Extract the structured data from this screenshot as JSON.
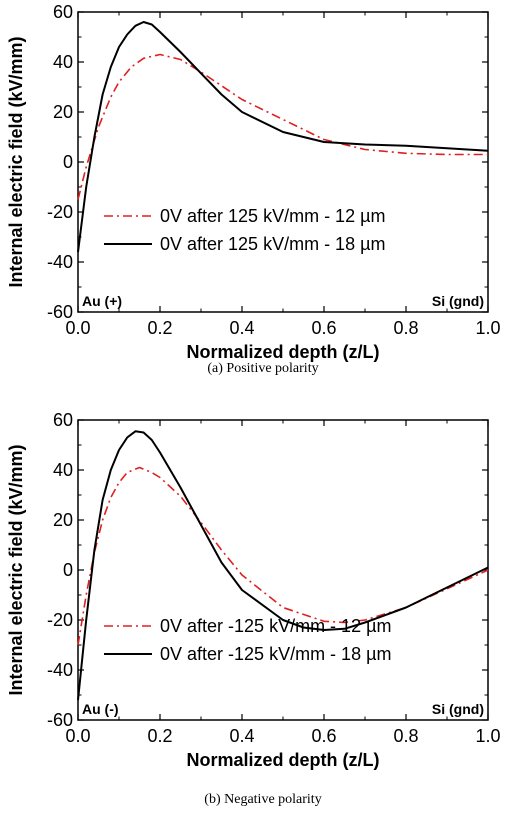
{
  "chart_data": [
    {
      "type": "line",
      "caption": "(a) Positive polarity",
      "xlabel": "Normalized depth (z/L)",
      "ylabel": "Internal electric field (kV/mm)",
      "xlim": [
        0,
        1
      ],
      "ylim": [
        -60,
        60
      ],
      "xticks": [
        "0.0",
        "0.2",
        "0.4",
        "0.6",
        "0.8",
        "1.0"
      ],
      "yticks": [
        "60",
        "40",
        "20",
        "0",
        "-20",
        "-40",
        "-60"
      ],
      "corner_left": "Au (+)",
      "corner_right": "Si (gnd)",
      "legend_position": "lower-center",
      "series": [
        {
          "name": "0V after 125 kV/mm -  12 µm",
          "color": "#e02020",
          "style": "dashdot",
          "x": [
            0,
            0.02,
            0.05,
            0.08,
            0.1,
            0.13,
            0.16,
            0.2,
            0.25,
            0.3,
            0.4,
            0.5,
            0.6,
            0.7,
            0.8,
            0.9,
            1.0
          ],
          "y": [
            -15,
            -2,
            14,
            26,
            32,
            38,
            41.5,
            43,
            41,
            36,
            25,
            17,
            9,
            5,
            3.5,
            3,
            3
          ]
        },
        {
          "name": "0V after 125 kV/mm -  18 µm",
          "color": "#000000",
          "style": "solid",
          "x": [
            0,
            0.02,
            0.04,
            0.06,
            0.08,
            0.1,
            0.12,
            0.14,
            0.16,
            0.18,
            0.2,
            0.25,
            0.3,
            0.35,
            0.4,
            0.5,
            0.6,
            0.7,
            0.8,
            0.9,
            1.0
          ],
          "y": [
            -36,
            -10,
            10,
            27,
            38,
            46,
            51,
            54.5,
            56,
            55,
            52,
            44,
            35.5,
            27,
            20,
            12,
            8,
            7,
            6.5,
            5.5,
            4.5
          ]
        }
      ]
    },
    {
      "type": "line",
      "caption": "(b) Negative polarity",
      "xlabel": "Normalized depth (z/L)",
      "ylabel": "Internal electric field (kV/mm)",
      "xlim": [
        0,
        1
      ],
      "ylim": [
        -60,
        60
      ],
      "xticks": [
        "0.0",
        "0.2",
        "0.4",
        "0.6",
        "0.8",
        "1.0"
      ],
      "yticks": [
        "60",
        "40",
        "20",
        "0",
        "-20",
        "-40",
        "-60"
      ],
      "corner_left": "Au (-)",
      "corner_right": "Si (gnd)",
      "legend_position": "lower-center",
      "series": [
        {
          "name": "0V after -125 kV/mm -  12 µm",
          "color": "#e02020",
          "style": "dashdot",
          "x": [
            0,
            0.02,
            0.04,
            0.06,
            0.08,
            0.1,
            0.12,
            0.15,
            0.18,
            0.2,
            0.25,
            0.3,
            0.35,
            0.4,
            0.5,
            0.6,
            0.65,
            0.7,
            0.8,
            0.9,
            1.0
          ],
          "y": [
            -30,
            -10,
            7,
            20,
            29,
            35,
            39,
            41,
            39,
            37,
            29.5,
            19,
            8,
            -2,
            -15,
            -20.5,
            -21,
            -20,
            -15,
            -7.5,
            0
          ]
        },
        {
          "name": "0V after -125 kV/mm -  18 µm",
          "color": "#000000",
          "style": "solid",
          "x": [
            0,
            0.02,
            0.04,
            0.06,
            0.08,
            0.1,
            0.12,
            0.14,
            0.16,
            0.18,
            0.2,
            0.25,
            0.3,
            0.35,
            0.4,
            0.5,
            0.55,
            0.6,
            0.65,
            0.7,
            0.8,
            0.9,
            1.0
          ],
          "y": [
            -52,
            -20,
            8,
            28,
            40,
            48,
            53,
            55.5,
            55,
            52,
            47,
            33,
            18,
            3,
            -8,
            -20,
            -23,
            -24,
            -23.5,
            -21,
            -15,
            -7,
            1
          ]
        }
      ]
    }
  ]
}
